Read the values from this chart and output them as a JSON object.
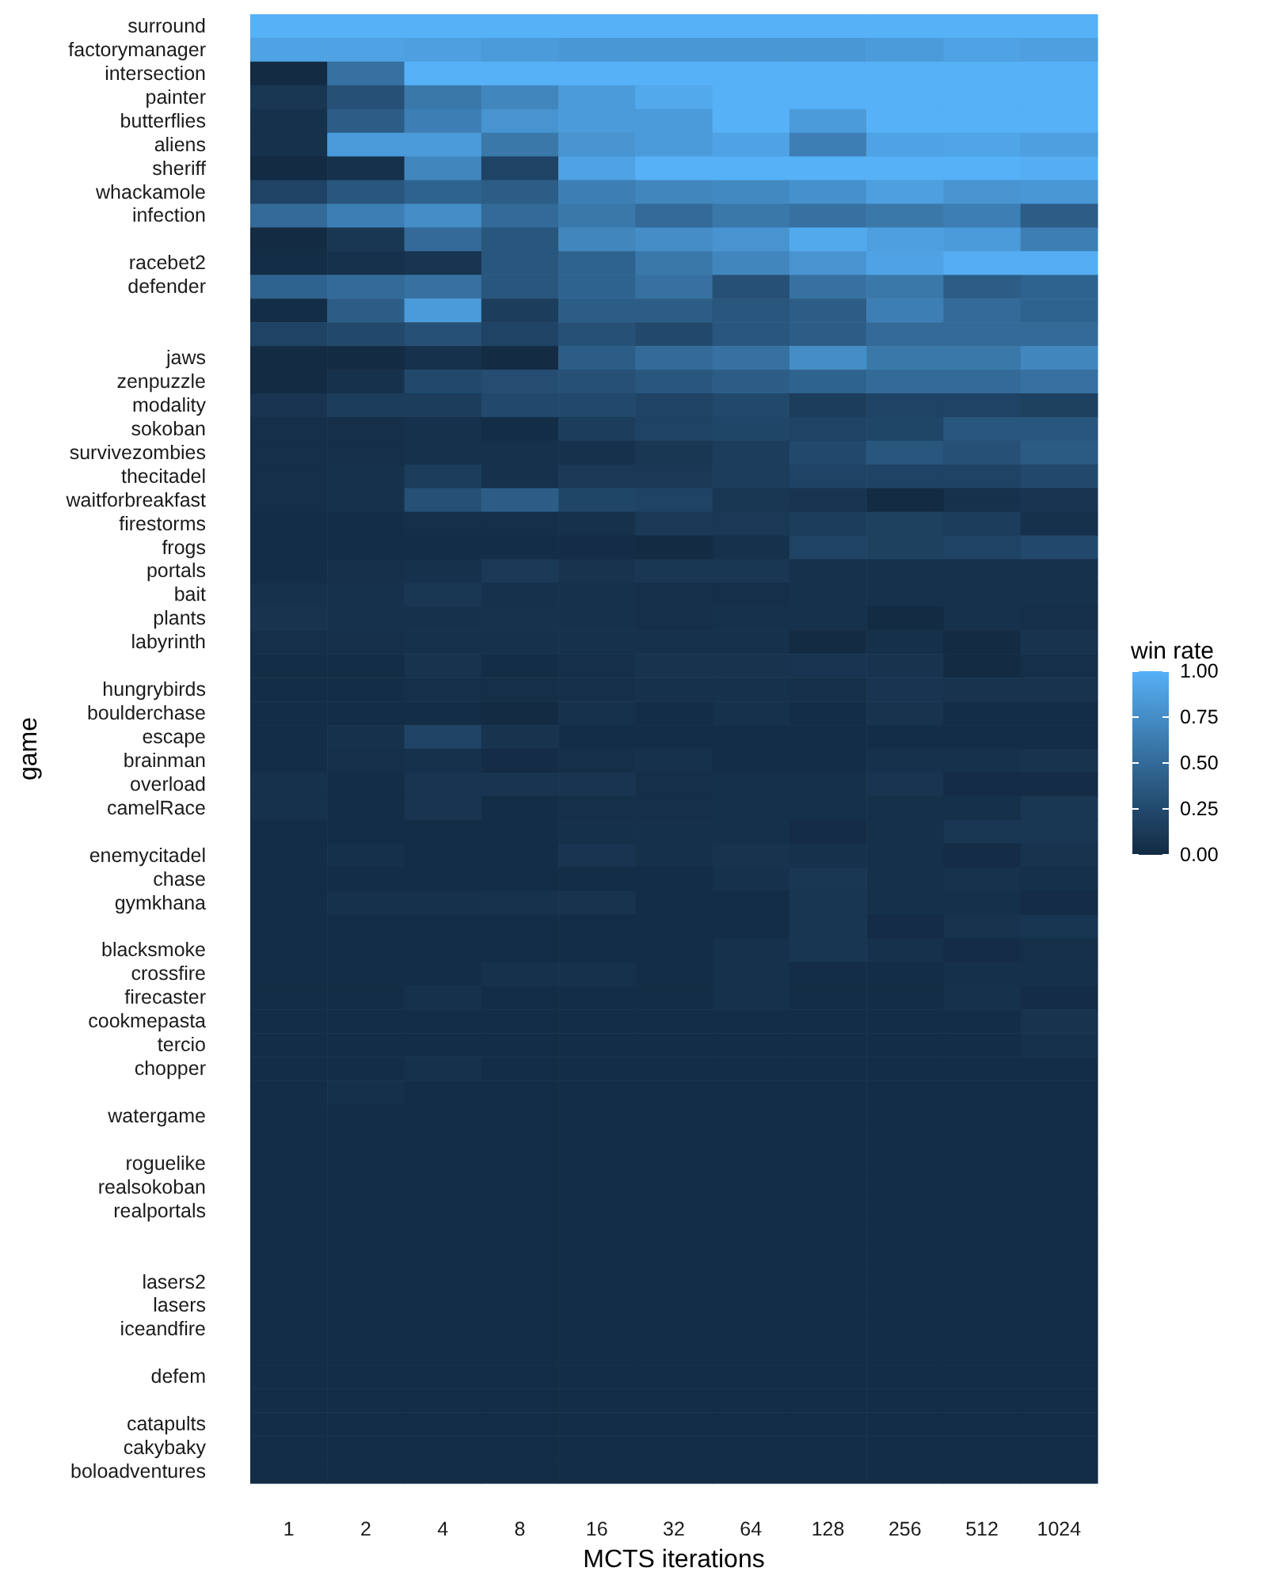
{
  "chart_data": {
    "type": "heatmap",
    "xlabel": "MCTS iterations",
    "ylabel": "game",
    "clabel": "win rate",
    "categories": [
      "1",
      "2",
      "4",
      "8",
      "16",
      "32",
      "64",
      "128",
      "256",
      "512",
      "1024"
    ],
    "y_categories": [
      "surround",
      "factorymanager",
      "intersection",
      "painter",
      "butterflies",
      "aliens",
      "sheriff",
      "whackamole",
      "infection",
      null,
      "racebet2",
      "defender",
      null,
      null,
      "jaws",
      "zenpuzzle",
      "modality",
      "sokoban",
      "survivezombies",
      "thecitadel",
      "waitforbreakfast",
      "firestorms",
      "frogs",
      "portals",
      "bait",
      "plants",
      "labyrinth",
      null,
      "hungrybirds",
      "boulderchase",
      "escape",
      "brainman",
      "overload",
      "camelRace",
      null,
      "enemycitadel",
      "chase",
      "gymkhana",
      null,
      "blacksmoke",
      "crossfire",
      "firecaster",
      "cookmepasta",
      "tercio",
      "chopper",
      null,
      "watergame",
      null,
      "roguelike",
      "realsokoban",
      "realportals",
      null,
      null,
      "lasers2",
      "lasers",
      "iceandfire",
      null,
      "defem",
      null,
      "catapults",
      "cakybaky",
      "boloadventures"
    ],
    "clim": [
      0,
      1
    ],
    "cticks": [
      {
        "value": 0,
        "label": "0.00"
      },
      {
        "value": 0.25,
        "label": "0.25"
      },
      {
        "value": 0.5,
        "label": "0.50"
      },
      {
        "value": 0.75,
        "label": "0.75"
      },
      {
        "value": 1,
        "label": "1.00"
      }
    ],
    "cells": [
      [
        1,
        1,
        1,
        1,
        1,
        1,
        1,
        1,
        1,
        1,
        1
      ],
      [
        0.9,
        0.9,
        0.88,
        0.85,
        0.82,
        0.82,
        0.82,
        0.82,
        0.85,
        0.9,
        0.88
      ],
      [
        0,
        0.55,
        1,
        1,
        1,
        1,
        1,
        1,
        1,
        1,
        1
      ],
      [
        0.1,
        0.3,
        0.6,
        0.7,
        0.85,
        0.95,
        1,
        1,
        1,
        1,
        1
      ],
      [
        0.05,
        0.4,
        0.65,
        0.8,
        0.85,
        0.85,
        1,
        0.85,
        1,
        1,
        1
      ],
      [
        0.05,
        0.85,
        0.85,
        0.6,
        0.8,
        0.85,
        0.9,
        0.65,
        0.9,
        0.92,
        0.88
      ],
      [
        0,
        0.05,
        0.7,
        0.2,
        0.9,
        1,
        1,
        1,
        1,
        1,
        0.98
      ],
      [
        0.2,
        0.35,
        0.45,
        0.4,
        0.65,
        0.7,
        0.72,
        0.78,
        0.88,
        0.8,
        0.82
      ],
      [
        0.5,
        0.65,
        0.75,
        0.5,
        0.6,
        0.5,
        0.6,
        0.55,
        0.6,
        0.65,
        0.4
      ],
      [
        0,
        0.1,
        0.5,
        0.35,
        0.7,
        0.75,
        0.8,
        0.95,
        0.88,
        0.85,
        0.65
      ],
      [
        0.02,
        0.05,
        0.08,
        0.35,
        0.45,
        0.6,
        0.7,
        0.8,
        0.9,
        0.98,
        0.98
      ],
      [
        0.45,
        0.5,
        0.55,
        0.35,
        0.45,
        0.55,
        0.3,
        0.55,
        0.6,
        0.4,
        0.45
      ],
      [
        0.02,
        0.4,
        0.85,
        0.15,
        0.4,
        0.4,
        0.35,
        0.4,
        0.65,
        0.5,
        0.45
      ],
      [
        0.2,
        0.25,
        0.3,
        0.2,
        0.3,
        0.25,
        0.35,
        0.4,
        0.5,
        0.5,
        0.5
      ],
      [
        0,
        0,
        0.05,
        0,
        0.4,
        0.5,
        0.55,
        0.75,
        0.6,
        0.6,
        0.7
      ],
      [
        0,
        0.05,
        0.25,
        0.28,
        0.3,
        0.35,
        0.4,
        0.45,
        0.5,
        0.5,
        0.55
      ],
      [
        0.08,
        0.15,
        0.15,
        0.25,
        0.25,
        0.2,
        0.25,
        0.15,
        0.2,
        0.2,
        0.18
      ],
      [
        0.03,
        0.03,
        0.05,
        0.02,
        0.15,
        0.2,
        0.22,
        0.2,
        0.22,
        0.35,
        0.35
      ],
      [
        0.03,
        0.03,
        0.05,
        0.05,
        0.05,
        0.1,
        0.15,
        0.25,
        0.35,
        0.3,
        0.38
      ],
      [
        0.03,
        0.05,
        0.15,
        0.05,
        0.12,
        0.12,
        0.15,
        0.2,
        0.2,
        0.2,
        0.25
      ],
      [
        0.03,
        0.05,
        0.3,
        0.4,
        0.22,
        0.2,
        0.1,
        0.08,
        0,
        0.05,
        0.08
      ],
      [
        0.02,
        0.02,
        0.03,
        0.03,
        0.05,
        0.12,
        0.12,
        0.15,
        0.18,
        0.15,
        0.05
      ],
      [
        0.02,
        0.02,
        0.02,
        0.02,
        0.01,
        0,
        0.05,
        0.2,
        0.18,
        0.2,
        0.25
      ],
      [
        0.02,
        0.03,
        0.05,
        0.12,
        0.07,
        0.1,
        0.1,
        0.05,
        0.05,
        0.05,
        0.05
      ],
      [
        0.05,
        0.05,
        0.1,
        0.05,
        0.05,
        0.03,
        0.03,
        0.05,
        0.05,
        0.05,
        0.05
      ],
      [
        0.07,
        0.05,
        0.05,
        0.06,
        0.05,
        0.03,
        0.05,
        0.05,
        0,
        0.05,
        0.03
      ],
      [
        0.03,
        0.03,
        0.05,
        0.05,
        0.05,
        0.05,
        0.05,
        0,
        0.04,
        0,
        0.07
      ],
      [
        0.02,
        0.02,
        0.07,
        0.02,
        0.03,
        0.07,
        0.07,
        0.08,
        0.07,
        0,
        0.03
      ],
      [
        0.02,
        0.02,
        0.03,
        0.03,
        0.03,
        0.05,
        0.05,
        0.03,
        0.08,
        0.07,
        0.07
      ],
      [
        0.02,
        0.02,
        0.02,
        0,
        0.05,
        0.02,
        0.05,
        0.02,
        0.07,
        0.02,
        0.02
      ],
      [
        0.02,
        0.05,
        0.2,
        0.07,
        0.02,
        0.02,
        0.02,
        0.02,
        0.02,
        0.02,
        0.02
      ],
      [
        0.02,
        0.03,
        0.05,
        0.01,
        0.03,
        0.05,
        0.02,
        0.02,
        0.05,
        0.05,
        0.07
      ],
      [
        0.05,
        0.02,
        0.08,
        0.08,
        0.08,
        0.03,
        0.04,
        0.04,
        0.08,
        0.01,
        0.01
      ],
      [
        0.05,
        0.02,
        0.08,
        0.02,
        0.03,
        0.03,
        0.04,
        0.04,
        0.04,
        0.04,
        0.1
      ],
      [
        0.02,
        0.02,
        0.02,
        0.02,
        0.04,
        0.04,
        0.04,
        0.01,
        0.04,
        0.1,
        0.1
      ],
      [
        0.02,
        0.04,
        0.02,
        0.02,
        0.08,
        0.04,
        0.07,
        0.05,
        0.04,
        0.01,
        0.07
      ],
      [
        0.02,
        0.02,
        0.02,
        0.02,
        0.02,
        0.02,
        0.05,
        0.1,
        0.04,
        0.06,
        0.04
      ],
      [
        0.02,
        0.05,
        0.05,
        0.06,
        0.07,
        0.02,
        0.02,
        0.09,
        0.04,
        0.04,
        0.01
      ],
      [
        0.02,
        0.02,
        0.02,
        0.02,
        0.02,
        0.02,
        0.02,
        0.09,
        0.01,
        0.07,
        0.09
      ],
      [
        0.02,
        0.02,
        0.02,
        0.02,
        0.02,
        0.02,
        0.05,
        0.09,
        0.05,
        0.01,
        0.03
      ],
      [
        0.02,
        0.02,
        0.02,
        0.05,
        0.05,
        0.02,
        0.05,
        0.02,
        0.02,
        0.04,
        0.04
      ],
      [
        0.02,
        0.02,
        0.05,
        0.02,
        0.02,
        0.02,
        0.05,
        0.02,
        0.02,
        0.05,
        0.01
      ],
      [
        0.02,
        0.02,
        0.02,
        0.02,
        0.02,
        0.02,
        0.02,
        0.02,
        0.02,
        0.02,
        0.07
      ],
      [
        0.02,
        0.02,
        0.02,
        0.02,
        0.02,
        0.02,
        0.02,
        0.02,
        0.02,
        0.02,
        0.05
      ],
      [
        0.02,
        0.02,
        0.05,
        0.02,
        0.02,
        0.02,
        0.02,
        0.02,
        0.02,
        0.02,
        0.02
      ],
      [
        0.02,
        0.04,
        0.02,
        0.02,
        0.02,
        0.02,
        0.02,
        0.02,
        0.02,
        0.02,
        0.02
      ],
      [
        0.02,
        0.02,
        0.02,
        0.02,
        0.02,
        0.02,
        0.02,
        0.02,
        0.02,
        0.02,
        0.02
      ],
      [
        0.02,
        0.02,
        0.02,
        0.02,
        0.02,
        0.02,
        0.02,
        0.02,
        0.02,
        0.02,
        0.02
      ],
      [
        0.02,
        0.02,
        0.02,
        0.02,
        0.02,
        0.02,
        0.02,
        0.02,
        0.02,
        0.02,
        0.02
      ],
      [
        0.02,
        0.02,
        0.02,
        0.02,
        0.02,
        0.02,
        0.02,
        0.02,
        0.02,
        0.02,
        0.02
      ],
      [
        0.02,
        0.02,
        0.02,
        0.02,
        0.02,
        0.02,
        0.02,
        0.02,
        0.02,
        0.02,
        0.02
      ],
      [
        0.02,
        0.02,
        0.02,
        0.02,
        0.02,
        0.02,
        0.02,
        0.02,
        0.02,
        0.02,
        0.02
      ],
      [
        0.02,
        0.02,
        0.02,
        0.02,
        0.02,
        0.02,
        0.02,
        0.02,
        0.02,
        0.02,
        0.02
      ],
      [
        0.02,
        0.02,
        0.02,
        0.02,
        0.02,
        0.02,
        0.02,
        0.02,
        0.02,
        0.02,
        0.02
      ],
      [
        0.02,
        0.02,
        0.02,
        0.02,
        0.02,
        0.02,
        0.02,
        0.02,
        0.02,
        0.02,
        0.02
      ],
      [
        0.02,
        0.02,
        0.02,
        0.02,
        0.02,
        0.02,
        0.02,
        0.02,
        0.02,
        0.02,
        0.02
      ],
      [
        0.02,
        0.02,
        0.02,
        0.02,
        0.02,
        0.02,
        0.02,
        0.02,
        0.02,
        0.02,
        0.02
      ],
      [
        0.02,
        0.02,
        0.02,
        0.02,
        0.02,
        0.02,
        0.02,
        0.02,
        0.02,
        0.02,
        0.02
      ],
      [
        0.02,
        0.02,
        0.02,
        0.02,
        0.02,
        0.02,
        0.02,
        0.02,
        0.02,
        0.02,
        0.02
      ],
      [
        0.02,
        0.02,
        0.02,
        0.02,
        0.02,
        0.02,
        0.02,
        0.02,
        0.02,
        0.02,
        0.02
      ],
      [
        0.02,
        0.02,
        0.02,
        0.02,
        0.02,
        0.02,
        0.02,
        0.02,
        0.02,
        0.02,
        0.02
      ],
      [
        0.02,
        0.02,
        0.02,
        0.02,
        0.02,
        0.02,
        0.02,
        0.02,
        0.02,
        0.02,
        0.02
      ]
    ]
  }
}
